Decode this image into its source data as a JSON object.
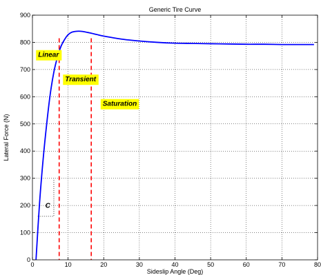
{
  "chart_data": {
    "type": "line",
    "title": "Generic Tire Curve",
    "xlabel": "Sideslip Angle (Deg)",
    "ylabel": "Lateral Force (N)",
    "xlim": [
      0,
      80
    ],
    "ylim": [
      0,
      900
    ],
    "xticks": [
      0,
      10,
      20,
      30,
      40,
      50,
      60,
      70,
      80
    ],
    "yticks": [
      0,
      100,
      200,
      300,
      400,
      500,
      600,
      700,
      800,
      900
    ],
    "grid": true,
    "series": [
      {
        "color": "#0000ff",
        "x": [
          1,
          2,
          3,
          4,
          5,
          6,
          7,
          8,
          9,
          10,
          11,
          12,
          13,
          14,
          16,
          18,
          20,
          25,
          30,
          35,
          40,
          45,
          50,
          55,
          60,
          65,
          70,
          75,
          79
        ],
        "y": [
          0,
          210,
          370,
          500,
          610,
          690,
          745,
          785,
          810,
          828,
          837,
          840,
          841,
          840,
          835,
          829,
          823,
          812,
          805,
          800,
          797,
          796,
          795,
          794,
          793,
          793,
          792,
          792,
          792
        ]
      }
    ],
    "vertical_lines": [
      {
        "x": 7.5,
        "color": "#ff0000",
        "style": "dashed"
      },
      {
        "x": 16.5,
        "color": "#ff0000",
        "style": "dashed"
      }
    ],
    "annotations": [
      {
        "text": "Linear",
        "x": 4.5,
        "y": 755,
        "background": "#ffff00"
      },
      {
        "text": "Transient",
        "x": 13.5,
        "y": 665,
        "background": "#ffff00"
      },
      {
        "text": "Saturation",
        "x": 24.5,
        "y": 575,
        "background": "#ffff00"
      },
      {
        "text": "C",
        "x": 4.3,
        "y": 200,
        "background": "none"
      }
    ],
    "slope_triangle": {
      "color": "#000000",
      "style": "dotted",
      "points": [
        [
          1.5,
          160
        ],
        [
          6,
          160
        ],
        [
          6,
          300
        ]
      ]
    }
  }
}
